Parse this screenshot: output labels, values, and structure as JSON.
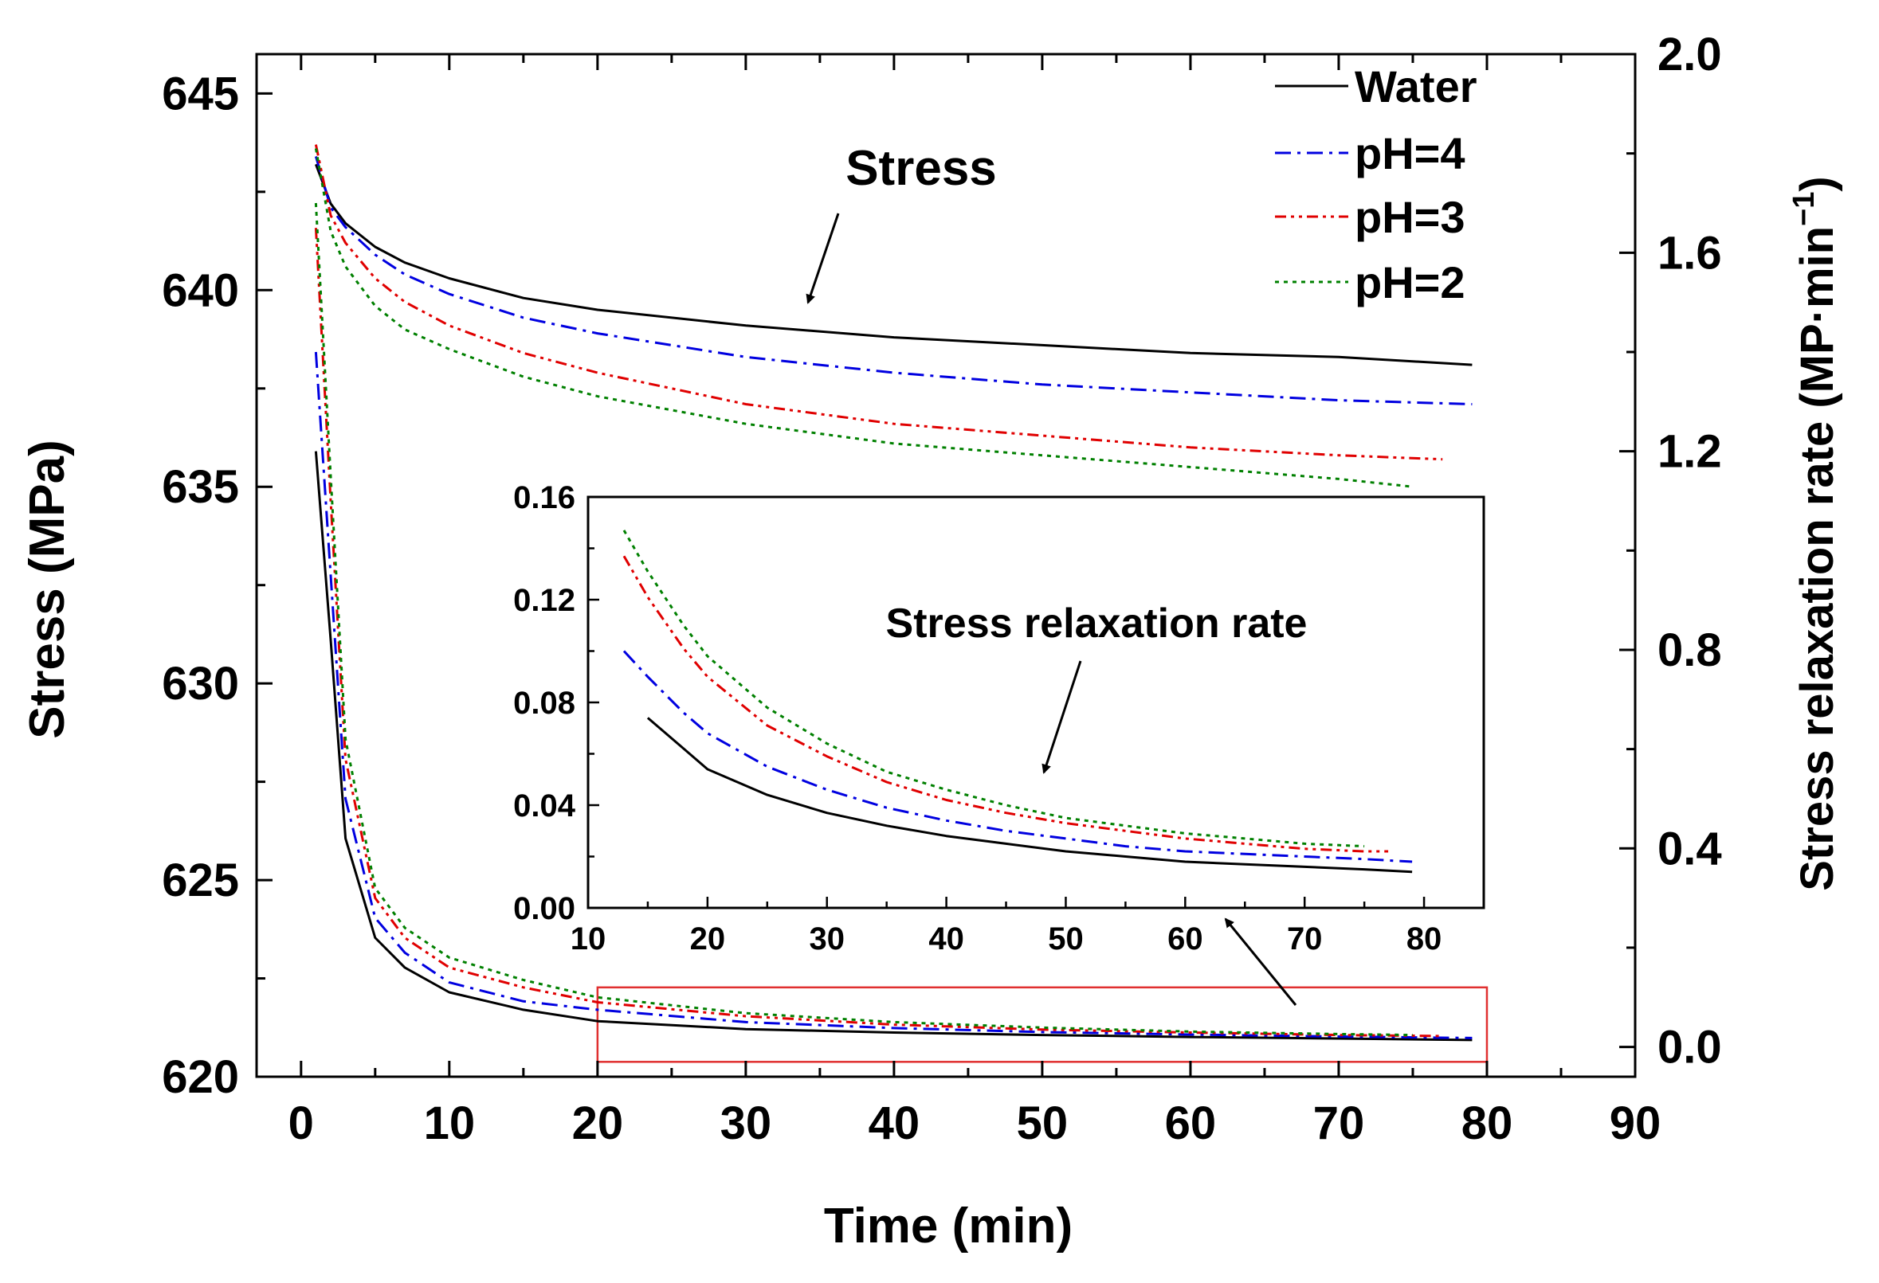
{
  "colors": {
    "Water": "#000000",
    "pH=4": "#0000e0",
    "pH=3": "#e00000",
    "pH=2": "#008000",
    "zoom_box": "#e03030"
  },
  "chart_data": {
    "type": "line",
    "xlabel": "Time (min)",
    "ylabel_left": "Stress (MPa)",
    "ylabel_right_base": "Stress relaxation rate (MP·min",
    "ylabel_right_sup": "−1",
    "ylabel_right_close": ")",
    "xlim": [
      -3,
      90
    ],
    "ylim_left": [
      620,
      646
    ],
    "ylim_right": [
      -0.06,
      2.0
    ],
    "x_ticks": [
      0,
      10,
      20,
      30,
      40,
      50,
      60,
      70,
      80,
      90
    ],
    "y_left_ticks": [
      620,
      625,
      630,
      635,
      640,
      645
    ],
    "y_right_ticks": [
      "0.0",
      "0.4",
      "0.8",
      "1.2",
      "1.6",
      "2.0"
    ],
    "annotations": {
      "stress": "Stress",
      "rate": "Stress relaxation rate"
    },
    "stress_series": [
      {
        "name": "Water",
        "x": [
          1,
          2,
          3,
          5,
          7,
          10,
          15,
          20,
          30,
          40,
          50,
          60,
          70,
          79
        ],
        "y": [
          643.2,
          642.2,
          641.7,
          641.1,
          640.7,
          640.3,
          639.8,
          639.5,
          639.1,
          638.8,
          638.6,
          638.4,
          638.3,
          638.1
        ]
      },
      {
        "name": "pH=4",
        "x": [
          1,
          2,
          3,
          5,
          7,
          10,
          15,
          20,
          30,
          40,
          50,
          60,
          70,
          79
        ],
        "y": [
          643.4,
          642.1,
          641.6,
          640.9,
          640.4,
          639.9,
          639.3,
          638.9,
          638.3,
          637.9,
          637.6,
          637.4,
          637.2,
          637.1
        ]
      },
      {
        "name": "pH=3",
        "x": [
          1,
          2,
          3,
          5,
          7,
          10,
          15,
          20,
          30,
          40,
          50,
          60,
          70,
          77
        ],
        "y": [
          643.7,
          641.9,
          641.2,
          640.3,
          639.7,
          639.1,
          638.4,
          637.9,
          637.1,
          636.6,
          636.3,
          636.0,
          635.8,
          635.7
        ]
      },
      {
        "name": "pH=2",
        "x": [
          1,
          2,
          3,
          5,
          7,
          10,
          15,
          20,
          30,
          40,
          50,
          60,
          70,
          75
        ],
        "y": [
          643.6,
          641.5,
          640.6,
          639.6,
          639.0,
          638.5,
          637.8,
          637.3,
          636.6,
          636.1,
          635.8,
          635.5,
          635.2,
          635.0
        ]
      }
    ],
    "rate_series": [
      {
        "name": "Water",
        "x": [
          1,
          2,
          3,
          5,
          7,
          10,
          15,
          20,
          30,
          40,
          50,
          60,
          70,
          79
        ],
        "y": [
          1.2,
          0.82,
          0.42,
          0.22,
          0.16,
          0.11,
          0.075,
          0.052,
          0.036,
          0.029,
          0.024,
          0.02,
          0.017,
          0.014
        ]
      },
      {
        "name": "pH=4",
        "x": [
          1,
          2,
          3,
          5,
          7,
          10,
          15,
          20,
          30,
          40,
          50,
          60,
          70,
          79
        ],
        "y": [
          1.4,
          0.95,
          0.5,
          0.26,
          0.19,
          0.13,
          0.092,
          0.075,
          0.05,
          0.038,
          0.03,
          0.025,
          0.021,
          0.018
        ]
      },
      {
        "name": "pH=3",
        "x": [
          1,
          2,
          3,
          5,
          7,
          10,
          15,
          20,
          30,
          40,
          50,
          60,
          70,
          77
        ],
        "y": [
          1.65,
          1.1,
          0.58,
          0.3,
          0.22,
          0.16,
          0.12,
          0.09,
          0.062,
          0.045,
          0.035,
          0.029,
          0.024,
          0.022
        ]
      },
      {
        "name": "pH=2",
        "x": [
          1,
          2,
          3,
          5,
          7,
          10,
          15,
          20,
          30,
          40,
          50,
          60,
          70,
          75
        ],
        "y": [
          1.7,
          1.15,
          0.62,
          0.32,
          0.24,
          0.18,
          0.135,
          0.1,
          0.068,
          0.05,
          0.039,
          0.031,
          0.026,
          0.024
        ]
      }
    ],
    "inset": {
      "xlim": [
        10,
        85
      ],
      "ylim": [
        0.0,
        0.16
      ],
      "x_ticks": [
        10,
        20,
        30,
        40,
        50,
        60,
        70,
        80
      ],
      "y_ticks": [
        "0.00",
        "0.04",
        "0.08",
        "0.12",
        "0.16"
      ],
      "zoom_region": {
        "x": [
          20,
          80
        ],
        "y": [
          -0.03,
          0.12
        ]
      },
      "series": [
        {
          "name": "Water",
          "x": [
            15,
            18,
            20,
            25,
            30,
            35,
            40,
            45,
            50,
            55,
            60,
            65,
            70,
            75,
            79
          ],
          "y": [
            0.074,
            0.062,
            0.054,
            0.044,
            0.037,
            0.032,
            0.028,
            0.025,
            0.022,
            0.02,
            0.018,
            0.017,
            0.016,
            0.015,
            0.014
          ]
        },
        {
          "name": "pH=4",
          "x": [
            13,
            15,
            18,
            20,
            25,
            30,
            35,
            40,
            45,
            50,
            55,
            60,
            65,
            70,
            75,
            79
          ],
          "y": [
            0.1,
            0.09,
            0.076,
            0.068,
            0.055,
            0.046,
            0.039,
            0.034,
            0.03,
            0.027,
            0.024,
            0.022,
            0.021,
            0.02,
            0.019,
            0.018
          ]
        },
        {
          "name": "pH=3",
          "x": [
            13,
            15,
            18,
            20,
            25,
            30,
            35,
            40,
            45,
            50,
            55,
            60,
            65,
            70,
            75,
            77
          ],
          "y": [
            0.137,
            0.121,
            0.101,
            0.09,
            0.071,
            0.059,
            0.049,
            0.042,
            0.037,
            0.033,
            0.03,
            0.027,
            0.025,
            0.023,
            0.022,
            0.022
          ]
        },
        {
          "name": "pH=2",
          "x": [
            13,
            15,
            18,
            20,
            25,
            30,
            35,
            40,
            45,
            50,
            55,
            60,
            65,
            70,
            75
          ],
          "y": [
            0.147,
            0.131,
            0.11,
            0.098,
            0.078,
            0.064,
            0.053,
            0.046,
            0.04,
            0.035,
            0.032,
            0.029,
            0.027,
            0.025,
            0.024
          ]
        }
      ]
    },
    "legend": [
      "Water",
      "pH=4",
      "pH=3",
      "pH=2"
    ],
    "legend_position": "top-right"
  }
}
